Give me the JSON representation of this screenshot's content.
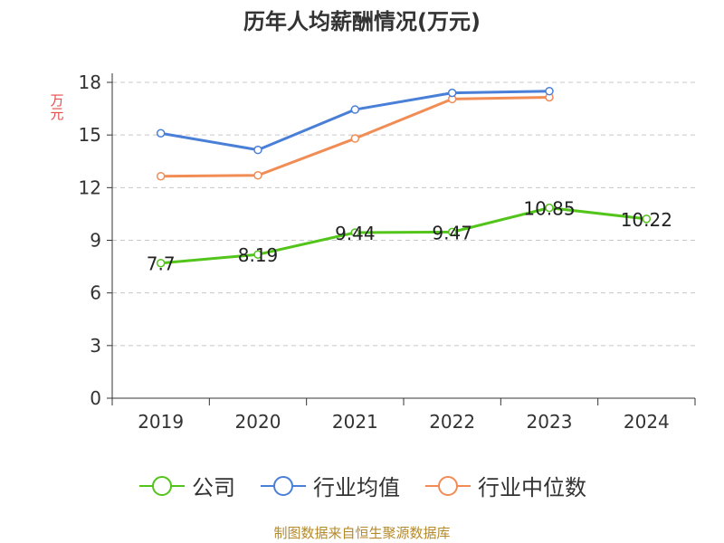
{
  "chart_data": {
    "type": "line",
    "title": "历年人均薪酬情况(万元)",
    "ylabel": "万元",
    "xlabel": "",
    "categories": [
      "2019",
      "2020",
      "2021",
      "2022",
      "2023",
      "2024"
    ],
    "ylim": [
      0,
      18
    ],
    "yticks": [
      0,
      3,
      6,
      9,
      12,
      15,
      18
    ],
    "grid": true,
    "legend_position": "bottom",
    "series": [
      {
        "name": "公司",
        "color": "#52c41a",
        "values": [
          7.7,
          8.19,
          9.44,
          9.47,
          10.85,
          10.22
        ],
        "labels": [
          "7.7",
          "8.19",
          "9.44",
          "9.47",
          "10.85",
          "10.22"
        ]
      },
      {
        "name": "行业均值",
        "color": "#4a7fd8",
        "values": [
          15.1,
          14.15,
          16.45,
          17.4,
          17.5,
          null
        ]
      },
      {
        "name": "行业中位数",
        "color": "#f28c55",
        "values": [
          12.65,
          12.7,
          14.8,
          17.05,
          17.15,
          null
        ]
      }
    ]
  },
  "source": "制图数据来自恒生聚源数据库"
}
